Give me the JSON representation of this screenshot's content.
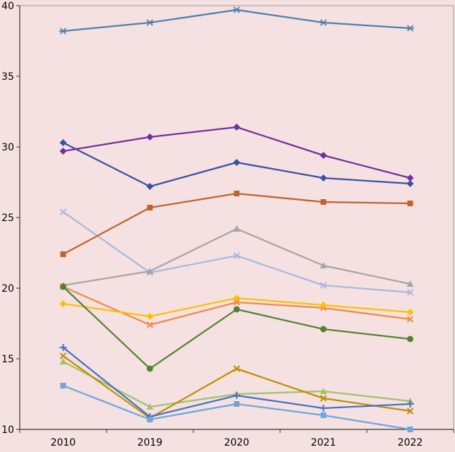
{
  "colors": {
    "background": "#f5e1e1",
    "plot_border": "#9a9a9a",
    "axis": "#333333",
    "text": "#000000"
  },
  "chart_data": {
    "type": "line",
    "title": "",
    "xlabel": "",
    "ylabel": "",
    "legend": "none",
    "grid": false,
    "categories": [
      "2010",
      "2019",
      "2020",
      "2021",
      "2022"
    ],
    "ylim": [
      10,
      40
    ],
    "ytick_step": 5,
    "yticks": [
      10,
      15,
      20,
      25,
      30,
      35,
      40
    ],
    "series": [
      {
        "id": "periwinkle-x",
        "color": "#aab8e0",
        "marker": "x",
        "values": [
          25.4,
          21.1,
          22.3,
          20.2,
          19.7
        ]
      },
      {
        "id": "gray-triangle",
        "color": "#a6a6a6",
        "marker": "triangle",
        "values": [
          20.2,
          21.2,
          24.2,
          21.6,
          20.3
        ]
      },
      {
        "id": "rust-square",
        "color": "#c0622c",
        "marker": "square",
        "values": [
          22.4,
          25.7,
          26.7,
          26.1,
          26.0
        ]
      },
      {
        "id": "coral-x",
        "color": "#ed8a4e",
        "marker": "x",
        "values": [
          20.1,
          17.4,
          19.0,
          18.6,
          17.8
        ]
      },
      {
        "id": "gold-diamond",
        "color": "#ffc000",
        "marker": "diamond",
        "values": [
          18.9,
          18.0,
          19.3,
          18.8,
          18.3
        ]
      },
      {
        "id": "navy-diamond",
        "color": "#3552a4",
        "marker": "diamond",
        "values": [
          30.3,
          27.2,
          28.9,
          27.8,
          27.4
        ]
      },
      {
        "id": "purple-diamond",
        "color": "#7030a0",
        "marker": "diamond",
        "values": [
          29.7,
          30.7,
          31.4,
          29.4,
          27.8
        ]
      },
      {
        "id": "steelblue-asterisk",
        "color": "#4e80ad",
        "marker": "asterisk",
        "values": [
          38.2,
          38.8,
          39.7,
          38.8,
          38.4
        ]
      },
      {
        "id": "green-circle",
        "color": "#548235",
        "marker": "circle",
        "values": [
          20.1,
          14.3,
          18.5,
          17.1,
          16.4
        ]
      },
      {
        "id": "lightgreen-triangle",
        "color": "#9dc36b",
        "marker": "triangle",
        "values": [
          14.8,
          11.6,
          12.5,
          12.7,
          12.0
        ]
      },
      {
        "id": "darkgold-x",
        "color": "#bf9000",
        "marker": "x",
        "values": [
          15.2,
          10.8,
          14.3,
          12.2,
          11.3
        ]
      },
      {
        "id": "blue-plus",
        "color": "#4472c4",
        "marker": "plus",
        "values": [
          15.8,
          10.9,
          12.4,
          11.5,
          11.8
        ]
      },
      {
        "id": "lightblue-square",
        "color": "#6ea6db",
        "marker": "square",
        "values": [
          13.1,
          10.7,
          11.8,
          11.0,
          10.0
        ]
      }
    ]
  }
}
